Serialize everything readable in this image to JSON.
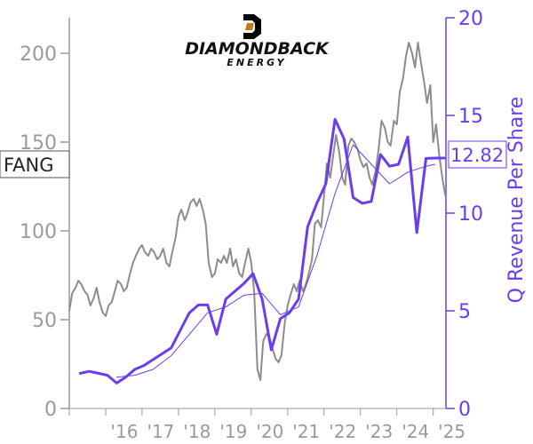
{
  "chart_data": {
    "type": "line",
    "logo": {
      "line1": "DIAMONDBACK",
      "line2": "ENERGY"
    },
    "ticker": "FANG",
    "ylabel_right": "Q Revenue Per Share",
    "current_value_label": "12.82",
    "x_ticks": [
      "'16",
      "'17",
      "'18",
      "'19",
      "'20",
      "'21",
      "'22",
      "'23",
      "'24",
      "'25"
    ],
    "y_left": {
      "ticks": [
        0,
        50,
        100,
        150,
        200
      ],
      "ylim": [
        0,
        220
      ]
    },
    "y_right": {
      "ticks": [
        0,
        5,
        10,
        15,
        20
      ],
      "ylim": [
        0,
        20
      ]
    },
    "xlim": [
      2015.0,
      2025.35
    ],
    "colors": {
      "price": "#8c8c8c",
      "revenue": "#6a3df0",
      "revenue_ma": "#6a3df0",
      "left_axis": "#9a9a9a",
      "right_axis": "#6a3df0"
    },
    "series": [
      {
        "role": "price",
        "axis": "left",
        "x": [
          2015.0,
          2015.08,
          2015.17,
          2015.25,
          2015.33,
          2015.42,
          2015.5,
          2015.58,
          2015.67,
          2015.75,
          2015.83,
          2015.92,
          2016.0,
          2016.08,
          2016.17,
          2016.25,
          2016.33,
          2016.42,
          2016.5,
          2016.58,
          2016.67,
          2016.75,
          2016.83,
          2016.92,
          2017.0,
          2017.08,
          2017.17,
          2017.25,
          2017.33,
          2017.42,
          2017.5,
          2017.58,
          2017.67,
          2017.75,
          2017.83,
          2017.92,
          2018.0,
          2018.08,
          2018.17,
          2018.25,
          2018.33,
          2018.42,
          2018.5,
          2018.58,
          2018.67,
          2018.75,
          2018.83,
          2018.92,
          2019.0,
          2019.08,
          2019.17,
          2019.25,
          2019.33,
          2019.42,
          2019.5,
          2019.58,
          2019.67,
          2019.75,
          2019.83,
          2019.92,
          2020.0,
          2020.08,
          2020.17,
          2020.25,
          2020.33,
          2020.42,
          2020.5,
          2020.58,
          2020.67,
          2020.75,
          2020.83,
          2020.92,
          2021.0,
          2021.08,
          2021.17,
          2021.25,
          2021.33,
          2021.42,
          2021.5,
          2021.58,
          2021.67,
          2021.75,
          2021.83,
          2021.92,
          2022.0,
          2022.08,
          2022.17,
          2022.25,
          2022.33,
          2022.42,
          2022.5,
          2022.58,
          2022.67,
          2022.75,
          2022.83,
          2022.92,
          2023.0,
          2023.08,
          2023.17,
          2023.25,
          2023.33,
          2023.42,
          2023.5,
          2023.58,
          2023.67,
          2023.75,
          2023.83,
          2023.92,
          2024.0,
          2024.08,
          2024.17,
          2024.25,
          2024.33,
          2024.42,
          2024.5,
          2024.58,
          2024.67,
          2024.75,
          2024.83,
          2024.92,
          2025.0,
          2025.08,
          2025.17,
          2025.25,
          2025.33
        ],
        "values": [
          55,
          65,
          68,
          72,
          70,
          66,
          64,
          58,
          62,
          68,
          60,
          54,
          52,
          58,
          60,
          66,
          72,
          70,
          66,
          68,
          76,
          82,
          86,
          90,
          92,
          88,
          86,
          90,
          88,
          84,
          86,
          90,
          82,
          80,
          88,
          96,
          108,
          112,
          106,
          110,
          116,
          118,
          114,
          118,
          112,
          104,
          82,
          74,
          76,
          84,
          82,
          86,
          82,
          90,
          80,
          84,
          76,
          74,
          82,
          90,
          82,
          66,
          22,
          16,
          38,
          42,
          40,
          34,
          28,
          26,
          30,
          48,
          58,
          64,
          70,
          66,
          72,
          66,
          70,
          76,
          84,
          104,
          106,
          102,
          120,
          138,
          130,
          142,
          154,
          144,
          130,
          126,
          148,
          152,
          150,
          146,
          140,
          136,
          138,
          130,
          126,
          134,
          146,
          162,
          158,
          150,
          148,
          162,
          160,
          178,
          186,
          198,
          206,
          200,
          192,
          206,
          194,
          184,
          172,
          182,
          150,
          160,
          142,
          130,
          120
        ]
      },
      {
        "role": "revenue",
        "axis": "right",
        "x": [
          2015.3,
          2015.55,
          2015.8,
          2016.05,
          2016.3,
          2016.55,
          2016.8,
          2017.05,
          2017.3,
          2017.55,
          2017.8,
          2018.05,
          2018.3,
          2018.55,
          2018.8,
          2019.05,
          2019.3,
          2019.55,
          2019.8,
          2020.05,
          2020.3,
          2020.55,
          2020.8,
          2021.05,
          2021.3,
          2021.55,
          2021.8,
          2022.05,
          2022.3,
          2022.55,
          2022.8,
          2023.05,
          2023.3,
          2023.55,
          2023.8,
          2024.05,
          2024.3,
          2024.55,
          2024.8,
          2025.05,
          2025.3
        ],
        "values": [
          1.8,
          1.9,
          1.8,
          1.7,
          1.3,
          1.6,
          2.0,
          2.2,
          2.5,
          2.8,
          3.1,
          4.0,
          4.9,
          5.3,
          5.3,
          3.8,
          5.6,
          6.0,
          6.4,
          6.9,
          5.6,
          3.0,
          4.6,
          4.9,
          5.6,
          9.3,
          10.5,
          11.5,
          14.8,
          13.8,
          10.8,
          10.5,
          10.6,
          13.0,
          12.4,
          12.5,
          13.9,
          9.0,
          12.8,
          12.82,
          12.82
        ]
      },
      {
        "role": "revenue_ma",
        "axis": "right",
        "x": [
          2016.3,
          2016.8,
          2017.3,
          2017.8,
          2018.3,
          2018.8,
          2019.3,
          2019.8,
          2020.3,
          2020.8,
          2021.3,
          2021.8,
          2022.3,
          2022.8,
          2023.3,
          2023.8,
          2024.3,
          2024.8,
          2025.05
        ],
        "values": [
          1.6,
          1.7,
          2.0,
          2.7,
          3.8,
          4.9,
          5.2,
          5.8,
          5.9,
          4.8,
          5.2,
          7.8,
          11.0,
          13.5,
          12.5,
          11.5,
          12.1,
          12.4,
          12.5
        ]
      }
    ]
  }
}
